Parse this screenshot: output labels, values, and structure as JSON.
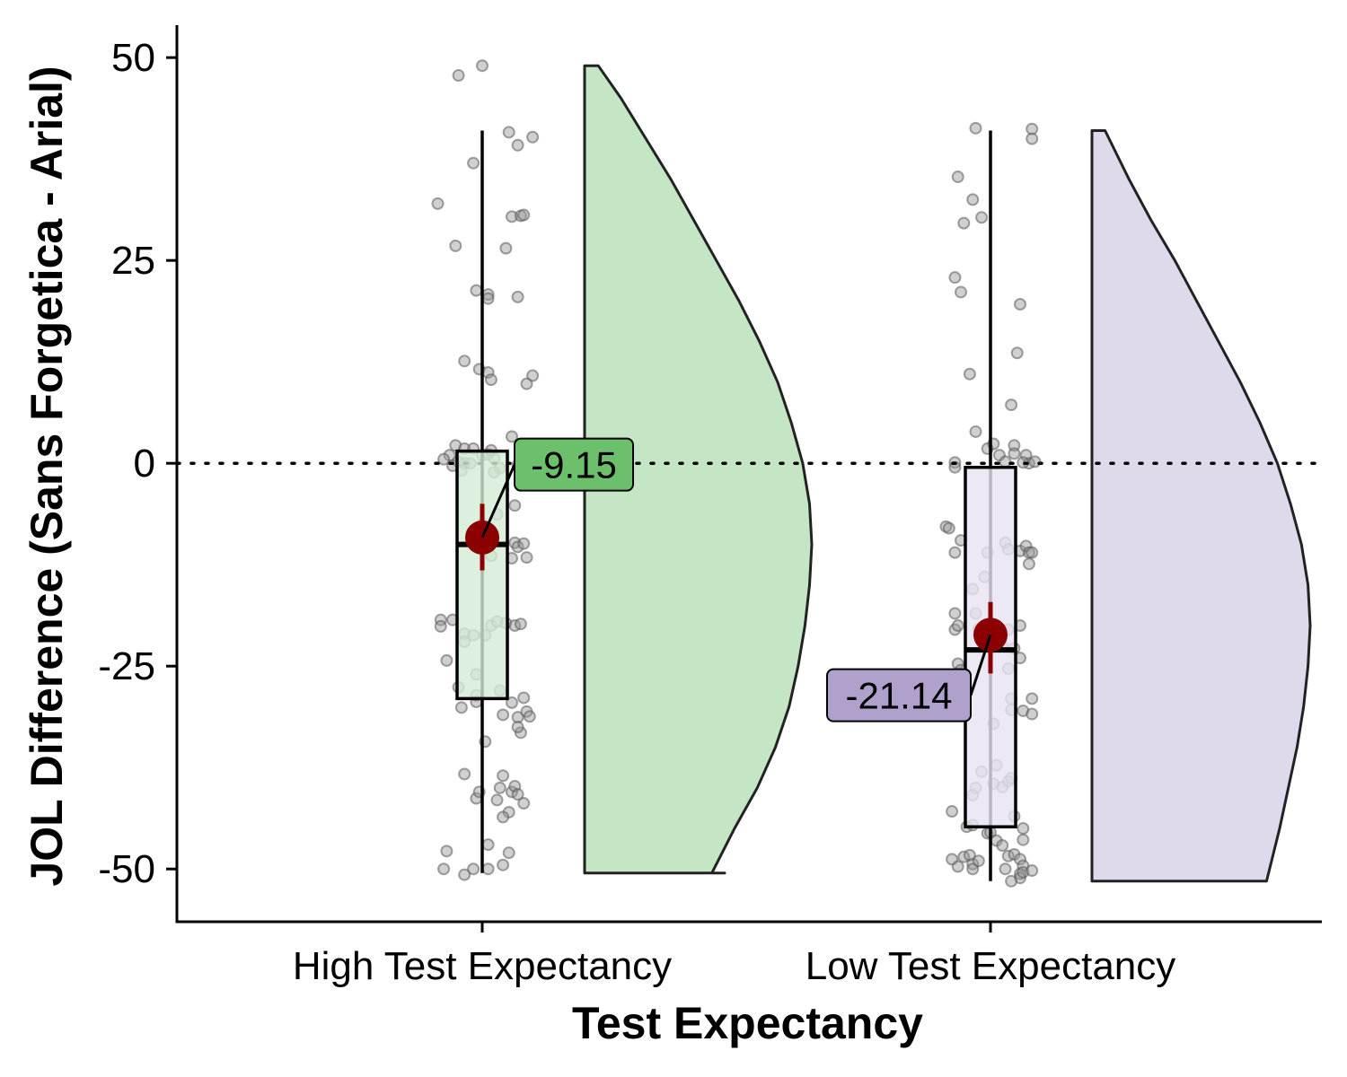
{
  "chart_data": {
    "type": "raincloud",
    "title": "",
    "xlabel": "Test Expectancy",
    "ylabel": "JOL Difference (Sans Forgetica - Arial)",
    "ylim": [
      -56.5,
      54
    ],
    "yticks": [
      50,
      25,
      0,
      -25,
      -50
    ],
    "ytick_labels": [
      "50",
      "25",
      "0",
      "-25",
      "-50"
    ],
    "reference_line": {
      "y": 0,
      "style": "dotted"
    },
    "grid": false,
    "legend": "none",
    "groups": [
      {
        "category": "High Test Expectancy",
        "box": {
          "min": -50.5,
          "q1": -29,
          "median": -10,
          "q3": 1.5,
          "max": 41
        },
        "mean": -9.15,
        "ci": [
          -13.2,
          -5
        ],
        "mean_label": "-9.15",
        "fill": "#c5e6c5",
        "box_fill": "#d5ecd5",
        "label_fill": "#6cc06c",
        "density": [
          [
            -50.5,
            0.56
          ],
          [
            -45,
            0.66
          ],
          [
            -40,
            0.76
          ],
          [
            -35,
            0.84
          ],
          [
            -30,
            0.9
          ],
          [
            -25,
            0.94
          ],
          [
            -20,
            0.97
          ],
          [
            -15,
            0.99
          ],
          [
            -10,
            1.0
          ],
          [
            -5,
            0.99
          ],
          [
            0,
            0.96
          ],
          [
            5,
            0.91
          ],
          [
            10,
            0.85
          ],
          [
            15,
            0.77
          ],
          [
            20,
            0.68
          ],
          [
            25,
            0.58
          ],
          [
            30,
            0.48
          ],
          [
            35,
            0.38
          ],
          [
            40,
            0.27
          ],
          [
            45,
            0.16
          ],
          [
            49,
            0.06
          ]
        ],
        "points": [
          [
            -0.08,
            47.8
          ],
          [
            0.0,
            49.0
          ],
          [
            -0.15,
            32.0
          ],
          [
            -0.09,
            26.8
          ],
          [
            -0.03,
            37.0
          ],
          [
            0.09,
            40.8
          ],
          [
            0.12,
            39.2
          ],
          [
            0.17,
            40.2
          ],
          [
            0.1,
            30.4
          ],
          [
            0.13,
            30.5
          ],
          [
            0.14,
            30.6
          ],
          [
            0.08,
            26.5
          ],
          [
            0.02,
            20.8
          ],
          [
            0.02,
            20.3
          ],
          [
            -0.02,
            21.3
          ],
          [
            0.12,
            20.5
          ],
          [
            -0.06,
            12.6
          ],
          [
            -0.01,
            11.6
          ],
          [
            0.02,
            11.2
          ],
          [
            0.03,
            10.3
          ],
          [
            0.17,
            10.8
          ],
          [
            0.15,
            9.8
          ],
          [
            -0.09,
            2.2
          ],
          [
            -0.06,
            1.8
          ],
          [
            -0.11,
            1.0
          ],
          [
            -0.13,
            0.5
          ],
          [
            -0.08,
            0.2
          ],
          [
            -0.06,
            0.0
          ],
          [
            -0.04,
            0.0
          ],
          [
            -0.1,
            -0.3
          ],
          [
            -0.07,
            -0.9
          ],
          [
            0.0,
            1.0
          ],
          [
            -0.03,
            1.8
          ],
          [
            0.02,
            1.1
          ],
          [
            0.04,
            0.6
          ],
          [
            0.06,
            -0.6
          ],
          [
            0.03,
            1.6
          ],
          [
            0.04,
            -1.1
          ],
          [
            0.1,
            3.3
          ],
          [
            0.12,
            -0.2
          ],
          [
            0.14,
            0.5
          ],
          [
            0.11,
            -5.2
          ],
          [
            0.05,
            -6.3
          ],
          [
            0.0,
            -7.5
          ],
          [
            -0.02,
            -9.3
          ],
          [
            0.03,
            -11.4
          ],
          [
            0.11,
            -9.8
          ],
          [
            0.1,
            -11.7
          ],
          [
            0.12,
            -10.3
          ],
          [
            0.14,
            -9.9
          ],
          [
            0.15,
            -11.6
          ],
          [
            -0.14,
            -19.3
          ],
          [
            -0.14,
            -20.1
          ],
          [
            -0.1,
            -19.3
          ],
          [
            -0.06,
            -21.0
          ],
          [
            -0.03,
            -21.2
          ],
          [
            -0.06,
            -22.0
          ],
          [
            0.01,
            -21.2
          ],
          [
            0.03,
            -20.0
          ],
          [
            0.05,
            -19.5
          ],
          [
            0.08,
            -19.7
          ],
          [
            0.11,
            -20.0
          ],
          [
            0.13,
            -19.8
          ],
          [
            -0.12,
            -24.3
          ],
          [
            -0.08,
            -27.6
          ],
          [
            -0.07,
            -30.1
          ],
          [
            -0.02,
            -28.6
          ],
          [
            -0.02,
            -29.4
          ],
          [
            -0.02,
            -26.0
          ],
          [
            0.06,
            -28.0
          ],
          [
            0.07,
            -31.0
          ],
          [
            0.1,
            -29.5
          ],
          [
            0.12,
            -31.3
          ],
          [
            0.13,
            -33.2
          ],
          [
            0.15,
            -30.6
          ],
          [
            0.16,
            -31.2
          ],
          [
            0.14,
            -28.9
          ],
          [
            0.12,
            -32.5
          ],
          [
            0.01,
            -34.3
          ],
          [
            -0.06,
            -38.3
          ],
          [
            -0.02,
            -41.3
          ],
          [
            -0.01,
            -40.5
          ],
          [
            0.06,
            -40.0
          ],
          [
            0.07,
            -38.5
          ],
          [
            0.1,
            -40.5
          ],
          [
            0.11,
            -39.8
          ],
          [
            0.12,
            -40.8
          ],
          [
            0.14,
            -41.9
          ],
          [
            0.09,
            -43.0
          ],
          [
            0.05,
            -41.5
          ],
          [
            0.07,
            -43.6
          ],
          [
            0.09,
            -48.0
          ],
          [
            0.02,
            -47.0
          ],
          [
            -0.12,
            -47.8
          ],
          [
            -0.13,
            -50.0
          ],
          [
            -0.06,
            -50.7
          ],
          [
            -0.03,
            -50.0
          ],
          [
            0.02,
            -50.0
          ],
          [
            0.07,
            -49.5
          ]
        ]
      },
      {
        "category": "Low Test Expectancy",
        "box": {
          "min": -51.5,
          "q1": -44.8,
          "median": -23,
          "q3": -0.5,
          "max": 41
        },
        "mean": -21.14,
        "ci": [
          -25.9,
          -17.1
        ],
        "mean_label": "-21.14",
        "fill": "#dfd9ec",
        "box_fill": "#e7e3f1",
        "label_fill": "#b0a0cc",
        "density": [
          [
            -51.5,
            0.8
          ],
          [
            -45,
            0.86
          ],
          [
            -40,
            0.9
          ],
          [
            -35,
            0.94
          ],
          [
            -30,
            0.97
          ],
          [
            -25,
            0.99
          ],
          [
            -20,
            1.0
          ],
          [
            -15,
            0.99
          ],
          [
            -10,
            0.96
          ],
          [
            -5,
            0.91
          ],
          [
            0,
            0.85
          ],
          [
            5,
            0.77
          ],
          [
            10,
            0.68
          ],
          [
            15,
            0.58
          ],
          [
            20,
            0.48
          ],
          [
            25,
            0.38
          ],
          [
            30,
            0.27
          ],
          [
            35,
            0.17
          ],
          [
            41,
            0.06
          ]
        ],
        "points": [
          [
            -0.05,
            41.3
          ],
          [
            0.14,
            41.2
          ],
          [
            0.14,
            40.0
          ],
          [
            -0.11,
            35.3
          ],
          [
            -0.06,
            32.5
          ],
          [
            -0.09,
            29.6
          ],
          [
            -0.03,
            30.3
          ],
          [
            -0.12,
            22.9
          ],
          [
            -0.1,
            21.1
          ],
          [
            0.1,
            19.6
          ],
          [
            -0.07,
            11.0
          ],
          [
            0.09,
            13.6
          ],
          [
            -0.05,
            3.9
          ],
          [
            0.07,
            7.2
          ],
          [
            -0.01,
            1.8
          ],
          [
            0.01,
            2.4
          ],
          [
            0.03,
            1.0
          ],
          [
            0.05,
            0.2
          ],
          [
            0.08,
            2.2
          ],
          [
            0.08,
            1.2
          ],
          [
            0.12,
            1.0
          ],
          [
            0.13,
            0.0
          ],
          [
            -0.12,
            0.1
          ],
          [
            -0.12,
            -0.5
          ],
          [
            0.15,
            0.2
          ],
          [
            0.11,
            0.1
          ],
          [
            -0.15,
            -7.8
          ],
          [
            -0.14,
            -8.0
          ],
          [
            -0.1,
            -9.5
          ],
          [
            -0.12,
            -11.0
          ],
          [
            -0.06,
            -15.5
          ],
          [
            -0.12,
            -18.5
          ],
          [
            -0.12,
            -20.5
          ],
          [
            -0.11,
            -20.0
          ],
          [
            -0.04,
            -20.4
          ],
          [
            -0.05,
            -18.5
          ],
          [
            -0.01,
            -11.0
          ],
          [
            -0.02,
            -14.0
          ],
          [
            0.05,
            -9.8
          ],
          [
            0.06,
            -10.6
          ],
          [
            0.1,
            -10.8
          ],
          [
            0.12,
            -10.2
          ],
          [
            0.13,
            -11.0
          ],
          [
            0.13,
            -12.4
          ],
          [
            0.14,
            -11.0
          ],
          [
            0.1,
            -20.0
          ],
          [
            0.08,
            -22.8
          ],
          [
            0.04,
            -22.5
          ],
          [
            0.06,
            -20.5
          ],
          [
            0.06,
            -25.3
          ],
          [
            0.1,
            -24.0
          ],
          [
            -0.11,
            -24.7
          ],
          [
            -0.1,
            -25.5
          ],
          [
            0.07,
            -29.0
          ],
          [
            0.07,
            -30.4
          ],
          [
            0.11,
            -30.5
          ],
          [
            0.14,
            -29.0
          ],
          [
            0.14,
            -30.9
          ],
          [
            0.01,
            -32.1
          ],
          [
            0.02,
            -37.2
          ],
          [
            0.01,
            -39.5
          ],
          [
            0.04,
            -39.9
          ],
          [
            0.06,
            -39.2
          ],
          [
            0.07,
            -38.8
          ],
          [
            -0.03,
            -38.0
          ],
          [
            -0.05,
            -40.0
          ],
          [
            -0.06,
            -40.9
          ],
          [
            -0.13,
            -42.9
          ],
          [
            -0.08,
            -44.8
          ],
          [
            -0.06,
            -44.6
          ],
          [
            -0.01,
            -45.6
          ],
          [
            0.0,
            -45.5
          ],
          [
            0.02,
            -46.5
          ],
          [
            0.04,
            -47.1
          ],
          [
            0.08,
            -43.5
          ],
          [
            0.11,
            -45.0
          ],
          [
            0.11,
            -46.4
          ],
          [
            0.06,
            -48.4
          ],
          [
            0.08,
            -48.2
          ],
          [
            0.1,
            -48.8
          ],
          [
            0.11,
            -49.6
          ],
          [
            0.1,
            -50.6
          ],
          [
            0.1,
            -51.1
          ],
          [
            0.11,
            -50.4
          ],
          [
            0.14,
            -50.2
          ],
          [
            -0.13,
            -48.8
          ],
          [
            -0.11,
            -49.7
          ],
          [
            -0.09,
            -48.5
          ],
          [
            -0.07,
            -48.3
          ],
          [
            -0.06,
            -49.4
          ],
          [
            -0.06,
            -50.0
          ],
          [
            0.05,
            -50.0
          ],
          [
            0.07,
            -51.5
          ],
          [
            -0.04,
            -49.0
          ]
        ]
      }
    ]
  }
}
